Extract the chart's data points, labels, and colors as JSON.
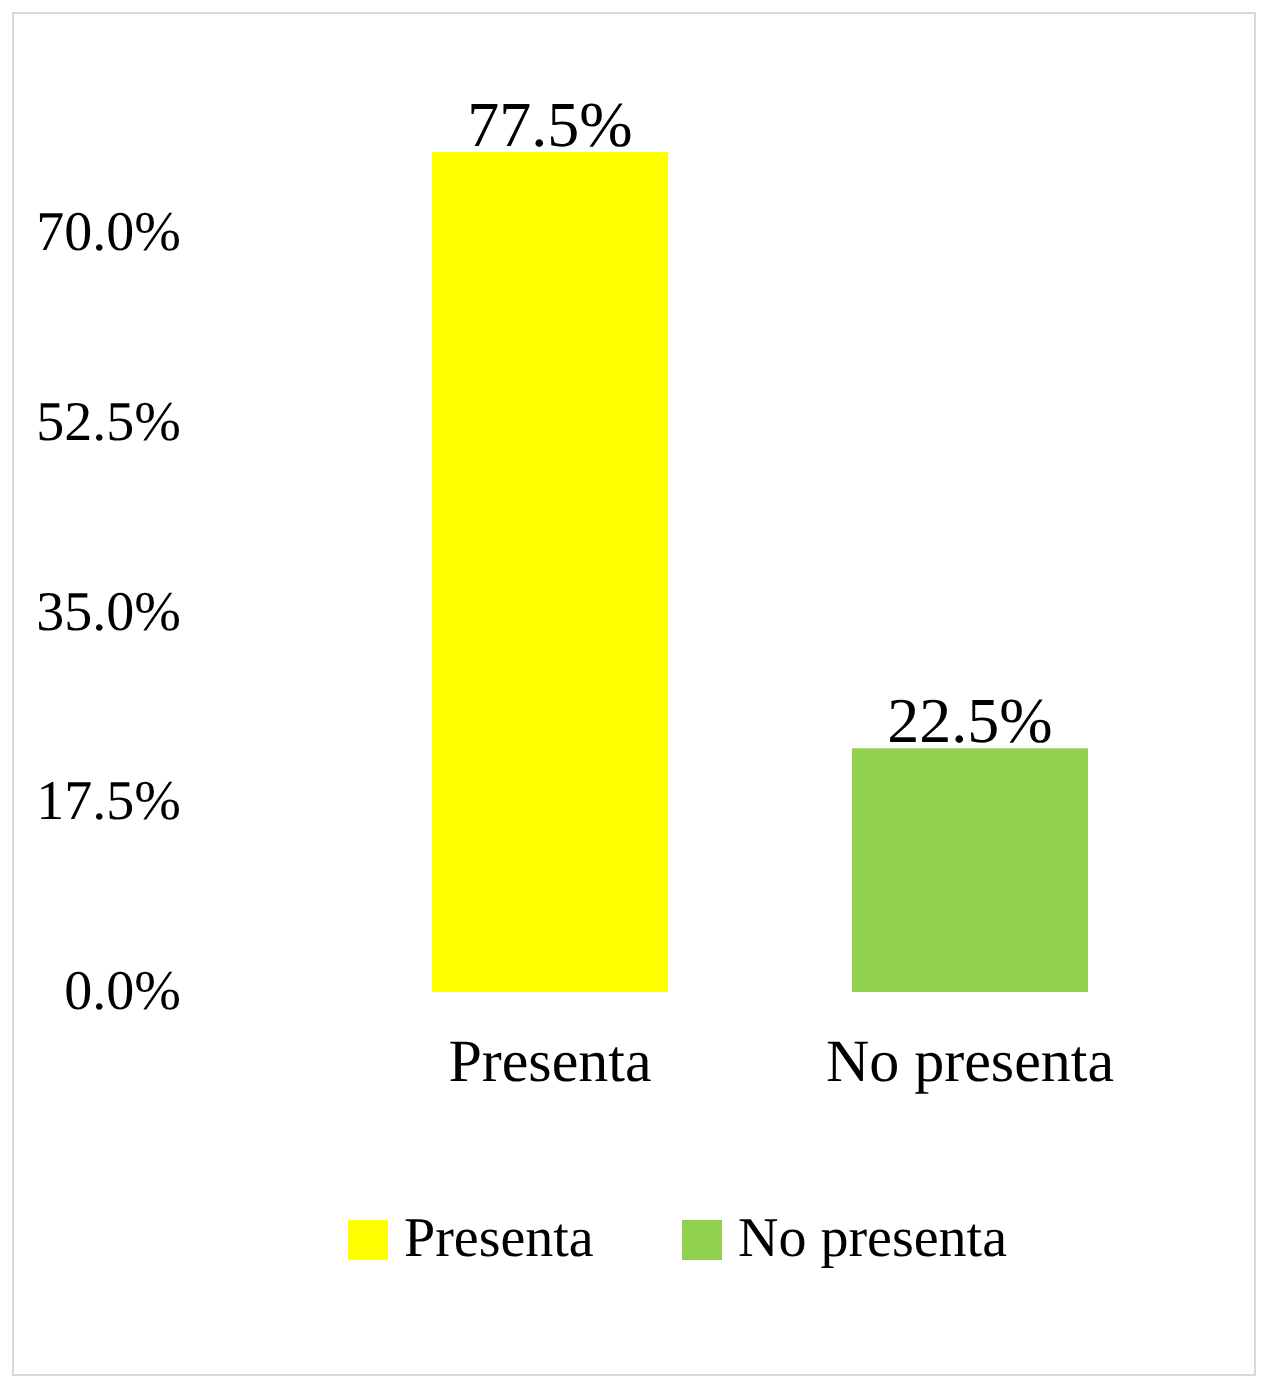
{
  "chart_data": {
    "type": "bar",
    "categories": [
      "Presenta",
      "No presenta"
    ],
    "series": [
      {
        "name": "Presenta",
        "color": "#ffff00",
        "values": [
          77.5,
          null
        ],
        "value_labels": [
          "77.5%",
          null
        ]
      },
      {
        "name": "No presenta",
        "color": "#92d050",
        "values": [
          null,
          22.5
        ],
        "value_labels": [
          null,
          "22.5%"
        ]
      }
    ],
    "ylim": [
      0,
      77.5
    ],
    "yticks": [
      {
        "value": 0,
        "label": "0.0%"
      },
      {
        "value": 17.5,
        "label": "17.5%"
      },
      {
        "value": 35,
        "label": "35.0%"
      },
      {
        "value": 52.5,
        "label": "52.5%"
      },
      {
        "value": 70,
        "label": "70.0%"
      }
    ],
    "grid": false,
    "legend": "bottom"
  }
}
